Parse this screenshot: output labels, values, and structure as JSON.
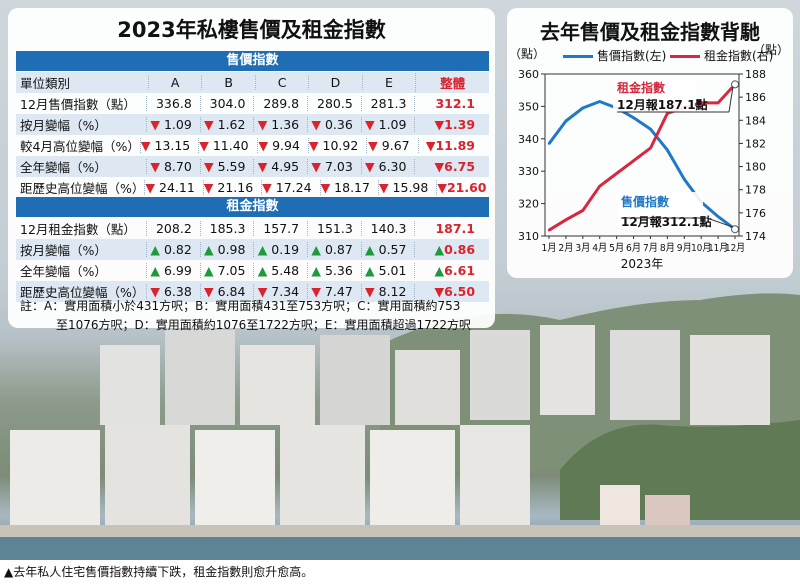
{
  "table": {
    "title": "2023年私樓售價及租金指數",
    "sale_section": "售價指數",
    "rent_section": "租金指數",
    "header": {
      "label": "單位類別",
      "cols": [
        "A",
        "B",
        "C",
        "D",
        "E"
      ],
      "total": "整體"
    },
    "sale_rows": [
      {
        "label": "12月售價指數（點）",
        "cells": [
          "336.8",
          "304.0",
          "289.8",
          "280.5",
          "281.3"
        ],
        "total": "312.1",
        "sign": ""
      },
      {
        "label": "按月變幅（%）",
        "cells": [
          "1.09",
          "1.62",
          "1.36",
          "0.36",
          "1.09"
        ],
        "total": "1.39",
        "sign": "▼"
      },
      {
        "label": "較4月高位變幅（%）",
        "cells": [
          "13.15",
          "11.40",
          "9.94",
          "10.92",
          "9.67"
        ],
        "total": "11.89",
        "sign": "▼"
      },
      {
        "label": "全年變幅（%）",
        "cells": [
          "8.70",
          "5.59",
          "4.95",
          "7.03",
          "6.30"
        ],
        "total": "6.75",
        "sign": "▼"
      },
      {
        "label": "距歷史高位變幅（%）",
        "cells": [
          "24.11",
          "21.16",
          "17.24",
          "18.17",
          "15.98"
        ],
        "total": "21.60",
        "sign": "▼"
      }
    ],
    "rent_rows": [
      {
        "label": "12月租金指數（點）",
        "cells": [
          "208.2",
          "185.3",
          "157.7",
          "151.3",
          "140.3"
        ],
        "total": "187.1",
        "sign": ""
      },
      {
        "label": "按月變幅（%）",
        "cells": [
          "0.82",
          "0.98",
          "0.19",
          "0.87",
          "0.57"
        ],
        "total": "0.86",
        "sign": "▲"
      },
      {
        "label": "全年變幅（%）",
        "cells": [
          "6.99",
          "7.05",
          "5.48",
          "5.36",
          "5.01"
        ],
        "total": "6.61",
        "sign": "▲"
      },
      {
        "label": "距歷史高位變幅（%）",
        "cells": [
          "6.38",
          "6.84",
          "7.34",
          "7.47",
          "8.12"
        ],
        "total": "6.50",
        "sign": "▼"
      }
    ],
    "note_line1": "註：A：實用面積小於431方呎；B：實用面積431至753方呎；C：實用面積約753",
    "note_line2": "至1076方呎；D：實用面積約1076至1722方呎；E：實用面積超過1722方呎"
  },
  "colors": {
    "sale": "#1f78c8",
    "rent": "#d6283e",
    "header_band": "#1f6eb5",
    "down": "#d9232d",
    "up": "#1e9a3c"
  },
  "chart_data": {
    "type": "line",
    "title": "去年售價及租金指數背馳",
    "categories": [
      "1月",
      "2月",
      "3月",
      "4月",
      "5月",
      "6月",
      "7月",
      "8月",
      "9月",
      "10月",
      "11月",
      "12月"
    ],
    "xlabel": "2023年",
    "left_axis_label": "（點）",
    "right_axis_label": "（點）",
    "ylim_left": [
      310,
      360
    ],
    "yticks_left": [
      310,
      320,
      330,
      340,
      350,
      360
    ],
    "ylim_right": [
      174,
      188
    ],
    "yticks_right": [
      174,
      176,
      178,
      180,
      182,
      184,
      186,
      188
    ],
    "series": [
      {
        "name": "售價指數(左)",
        "axis": "left",
        "values": [
          338.5,
          345.5,
          349.5,
          351.5,
          349.5,
          346.5,
          343.0,
          336.5,
          327.5,
          320.5,
          316.0,
          312.1
        ]
      },
      {
        "name": "租金指數(右)",
        "axis": "right",
        "values": [
          174.5,
          175.4,
          176.2,
          178.3,
          179.4,
          180.5,
          181.6,
          184.6,
          185.1,
          185.5,
          185.5,
          187.1
        ]
      }
    ],
    "annotations": [
      {
        "series": "租金指數(右)",
        "name": "租金指數",
        "text": "12月報187.1點"
      },
      {
        "series": "售價指數(左)",
        "name": "售價指數",
        "text": "12月報312.1點"
      }
    ]
  },
  "caption": "▲去年私人住宅售價指數持續下跌，租金指數則愈升愈高。"
}
